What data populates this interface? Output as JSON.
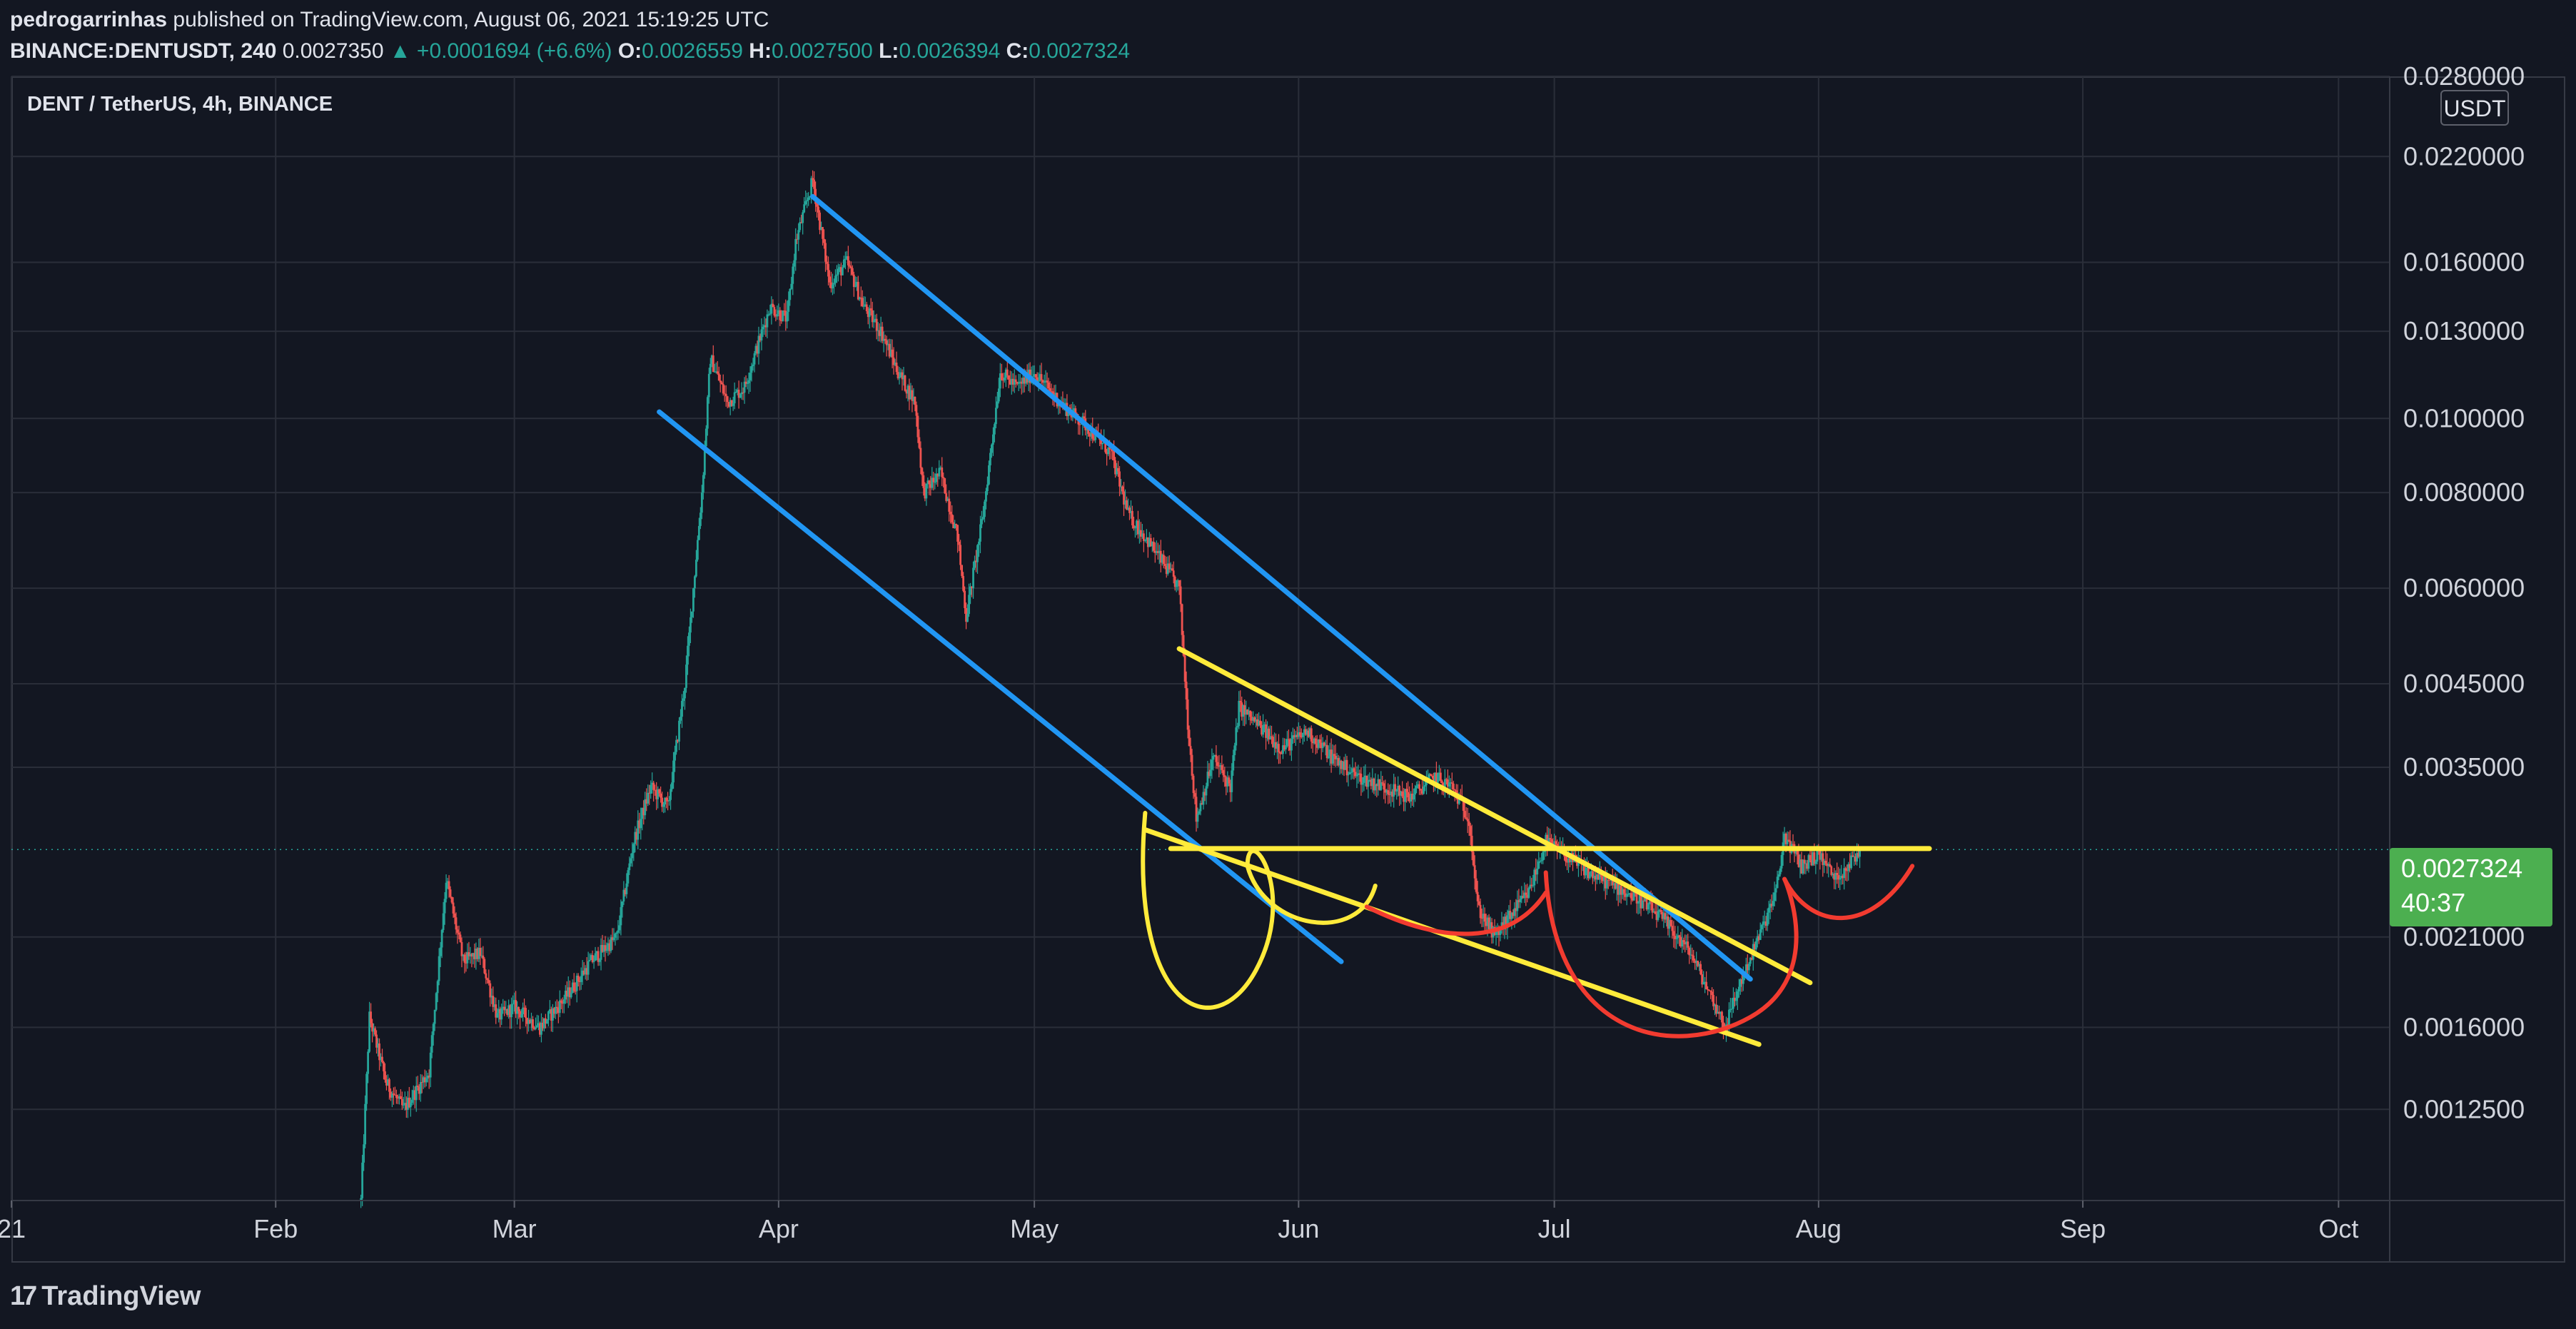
{
  "header": {
    "publisher": "pedrogarrinhas",
    "published_text": "published on TradingView.com, August 06, 2021 15:19:25 UTC",
    "symbol": "BINANCE:DENTUSDT, 240",
    "last": "0.0027350",
    "change": "▲ +0.0001694 (+6.6%)",
    "o_label": "O:",
    "o_value": "0.0026559",
    "h_label": "H:",
    "h_value": "0.0027500",
    "l_label": "L:",
    "l_value": "0.0026394",
    "c_label": "C:",
    "c_value": "0.0027324"
  },
  "pane": {
    "symbol_title": "DENT / TetherUS, 4h, BINANCE",
    "unit_badge": "USDT",
    "price_tag": "0.0027324",
    "countdown": "40:37"
  },
  "footer": {
    "brand_mark": "17",
    "brand": "TradingView"
  },
  "colors": {
    "background": "#131722",
    "up": "#26a69a",
    "down": "#ef5350",
    "trend_blue": "#2196f3",
    "trend_yellow": "#ffeb3b",
    "arc_red": "#f23b30",
    "tag_green": "#4caf50"
  },
  "chart_data": {
    "type": "candlestick",
    "title": "DENT / TetherUS, 4h, BINANCE",
    "y_scale": "log",
    "ylim": [
      0.00095,
      0.028
    ],
    "xlim": [
      "2021-01-01",
      "2021-10-07"
    ],
    "x_ticks": [
      {
        "date": "2021-01-01",
        "label": "21"
      },
      {
        "date": "2021-02-01",
        "label": "Feb"
      },
      {
        "date": "2021-03-01",
        "label": "Mar"
      },
      {
        "date": "2021-04-01",
        "label": "Apr"
      },
      {
        "date": "2021-05-01",
        "label": "May"
      },
      {
        "date": "2021-06-01",
        "label": "Jun"
      },
      {
        "date": "2021-07-01",
        "label": "Jul"
      },
      {
        "date": "2021-08-01",
        "label": "Aug"
      },
      {
        "date": "2021-09-01",
        "label": "Sep"
      },
      {
        "date": "2021-10-01",
        "label": "Oct"
      }
    ],
    "y_ticks": [
      {
        "value": 0.028,
        "label": "0.0280000"
      },
      {
        "value": 0.022,
        "label": "0.0220000"
      },
      {
        "value": 0.016,
        "label": "0.0160000"
      },
      {
        "value": 0.013,
        "label": "0.0130000"
      },
      {
        "value": 0.01,
        "label": "0.0100000"
      },
      {
        "value": 0.008,
        "label": "0.0080000"
      },
      {
        "value": 0.006,
        "label": "0.0060000"
      },
      {
        "value": 0.0045,
        "label": "0.0045000"
      },
      {
        "value": 0.0035,
        "label": "0.0035000"
      },
      {
        "value": 0.0021,
        "label": "0.0021000"
      },
      {
        "value": 0.0016,
        "label": "0.0016000"
      },
      {
        "value": 0.00125,
        "label": "0.0012500"
      }
    ],
    "price_path": [
      [
        "2021-02-11",
        0.00095
      ],
      [
        "2021-02-12",
        0.00165
      ],
      [
        "2021-02-14",
        0.00135
      ],
      [
        "2021-02-16",
        0.00125
      ],
      [
        "2021-02-19",
        0.0014
      ],
      [
        "2021-02-21",
        0.0025
      ],
      [
        "2021-02-23",
        0.00195
      ],
      [
        "2021-02-25",
        0.002
      ],
      [
        "2021-02-27",
        0.00165
      ],
      [
        "2021-03-01",
        0.0017
      ],
      [
        "2021-03-04",
        0.0016
      ],
      [
        "2021-03-07",
        0.00175
      ],
      [
        "2021-03-10",
        0.00195
      ],
      [
        "2021-03-13",
        0.0021
      ],
      [
        "2021-03-15",
        0.0028
      ],
      [
        "2021-03-17",
        0.0033
      ],
      [
        "2021-03-19",
        0.0031
      ],
      [
        "2021-03-21",
        0.0045
      ],
      [
        "2021-03-22",
        0.006
      ],
      [
        "2021-03-23",
        0.008
      ],
      [
        "2021-03-24",
        0.012
      ],
      [
        "2021-03-26",
        0.0105
      ],
      [
        "2021-03-28",
        0.011
      ],
      [
        "2021-03-31",
        0.014
      ],
      [
        "2021-04-02",
        0.0135
      ],
      [
        "2021-04-03",
        0.017
      ],
      [
        "2021-04-05",
        0.0205
      ],
      [
        "2021-04-07",
        0.015
      ],
      [
        "2021-04-09",
        0.016
      ],
      [
        "2021-04-11",
        0.014
      ],
      [
        "2021-04-13",
        0.013
      ],
      [
        "2021-04-15",
        0.0115
      ],
      [
        "2021-04-17",
        0.0105
      ],
      [
        "2021-04-18",
        0.008
      ],
      [
        "2021-04-20",
        0.0085
      ],
      [
        "2021-04-22",
        0.007
      ],
      [
        "2021-04-23",
        0.0055
      ],
      [
        "2021-04-25",
        0.0075
      ],
      [
        "2021-04-27",
        0.0115
      ],
      [
        "2021-04-29",
        0.011
      ],
      [
        "2021-05-01",
        0.0115
      ],
      [
        "2021-05-04",
        0.0105
      ],
      [
        "2021-05-07",
        0.0098
      ],
      [
        "2021-05-10",
        0.009
      ],
      [
        "2021-05-12",
        0.0075
      ],
      [
        "2021-05-14",
        0.007
      ],
      [
        "2021-05-16",
        0.0065
      ],
      [
        "2021-05-18",
        0.006
      ],
      [
        "2021-05-19",
        0.004
      ],
      [
        "2021-05-20",
        0.003
      ],
      [
        "2021-05-22",
        0.0036
      ],
      [
        "2021-05-24",
        0.0033
      ],
      [
        "2021-05-25",
        0.0042
      ],
      [
        "2021-05-27",
        0.004
      ],
      [
        "2021-05-30",
        0.0037
      ],
      [
        "2021-06-02",
        0.0039
      ],
      [
        "2021-06-05",
        0.0036
      ],
      [
        "2021-06-08",
        0.0034
      ],
      [
        "2021-06-11",
        0.0033
      ],
      [
        "2021-06-14",
        0.0032
      ],
      [
        "2021-06-17",
        0.0034
      ],
      [
        "2021-06-19",
        0.0033
      ],
      [
        "2021-06-21",
        0.003
      ],
      [
        "2021-06-22",
        0.0023
      ],
      [
        "2021-06-24",
        0.0021
      ],
      [
        "2021-06-26",
        0.00225
      ],
      [
        "2021-06-28",
        0.0024
      ],
      [
        "2021-06-30",
        0.0028
      ],
      [
        "2021-07-02",
        0.0027
      ],
      [
        "2021-07-05",
        0.00255
      ],
      [
        "2021-07-08",
        0.00245
      ],
      [
        "2021-07-11",
        0.00235
      ],
      [
        "2021-07-14",
        0.0022
      ],
      [
        "2021-07-17",
        0.002
      ],
      [
        "2021-07-20",
        0.0017
      ],
      [
        "2021-07-21",
        0.0016
      ],
      [
        "2021-07-23",
        0.00185
      ],
      [
        "2021-07-25",
        0.0021
      ],
      [
        "2021-07-27",
        0.0024
      ],
      [
        "2021-07-28",
        0.00285
      ],
      [
        "2021-07-30",
        0.0026
      ],
      [
        "2021-08-01",
        0.0027
      ],
      [
        "2021-08-03",
        0.0025
      ],
      [
        "2021-08-05",
        0.00265
      ],
      [
        "2021-08-06",
        0.0027324
      ]
    ],
    "drawings": [
      {
        "kind": "line",
        "color": "blue",
        "from": [
          "2021-04-05",
          0.0195
        ],
        "to": [
          "2021-07-24",
          0.00185
        ]
      },
      {
        "kind": "line",
        "color": "blue",
        "from": [
          "2021-03-18",
          0.0102
        ],
        "to": [
          "2021-06-06",
          0.00195
        ]
      },
      {
        "kind": "line",
        "color": "yellow",
        "from": [
          "2021-05-18",
          0.005
        ],
        "to": [
          "2021-07-31",
          0.00183
        ]
      },
      {
        "kind": "line",
        "color": "yellow",
        "from": [
          "2021-05-14",
          0.0029
        ],
        "to": [
          "2021-07-25",
          0.00152
        ]
      },
      {
        "kind": "line",
        "color": "yellow",
        "from": [
          "2021-05-17",
          0.00274
        ],
        "to": [
          "2021-08-14",
          0.00274
        ]
      }
    ]
  }
}
